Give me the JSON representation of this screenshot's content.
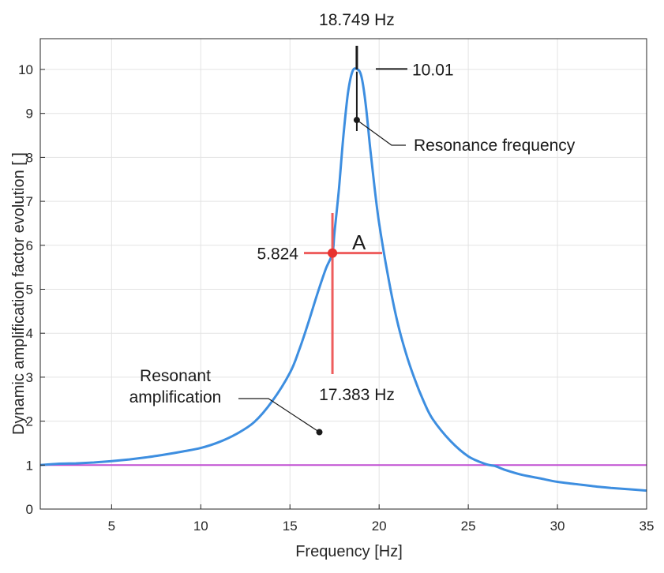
{
  "chart_data": {
    "type": "line",
    "title": "",
    "xlabel": "Frequency [Hz]",
    "ylabel": "Dynamic amplification factor evolution [ ]",
    "xlim": [
      1,
      35
    ],
    "ylim": [
      0,
      10.7
    ],
    "xticks": [
      5,
      10,
      15,
      20,
      25,
      30,
      35
    ],
    "yticks": [
      0,
      1,
      2,
      3,
      4,
      5,
      6,
      7,
      8,
      9,
      10
    ],
    "grid": true,
    "legend": "none",
    "series": [
      {
        "color": "#3d8ee0",
        "x": [
          1,
          2,
          3,
          4,
          5,
          6,
          7,
          8,
          9,
          10,
          11,
          12,
          13,
          14,
          15,
          15.5,
          16,
          16.5,
          17,
          17.383,
          17.5,
          17.75,
          18,
          18.25,
          18.5,
          18.749,
          19,
          19.25,
          19.5,
          19.75,
          20,
          20.5,
          21,
          21.5,
          22,
          22.5,
          23,
          24,
          25,
          26,
          26.5,
          27,
          28,
          29,
          30,
          31,
          32,
          33,
          34,
          35
        ],
        "values": [
          1.0,
          1.03,
          1.04,
          1.06,
          1.09,
          1.13,
          1.18,
          1.24,
          1.31,
          1.39,
          1.52,
          1.71,
          1.98,
          2.45,
          3.1,
          3.6,
          4.2,
          4.85,
          5.45,
          5.824,
          6.3,
          7.3,
          8.5,
          9.45,
          9.95,
          10.01,
          9.85,
          9.2,
          8.2,
          7.3,
          6.5,
          5.3,
          4.3,
          3.55,
          2.95,
          2.45,
          2.05,
          1.55,
          1.2,
          1.02,
          0.98,
          0.9,
          0.78,
          0.7,
          0.62,
          0.57,
          0.52,
          0.48,
          0.45,
          0.42
        ]
      },
      {
        "color": "#c04fd2",
        "x": [
          1,
          35
        ],
        "values": [
          1,
          1
        ]
      }
    ],
    "annotations": {
      "peak_freq_label": "18.749 Hz",
      "peak_value_label": "10.01",
      "resonance_label": "Resonance frequency",
      "point_value_label": "5.824",
      "point_letter": "A",
      "point_freq_label": "17.383 Hz",
      "resonant_label_line1": "Resonant",
      "resonant_label_line2": "amplification"
    },
    "colors": {
      "curve": "#3d8ee0",
      "baseline": "#c04fd2",
      "marker": "#e8322f",
      "crosshair": "#ee5d5d",
      "grid": "#e3e3e3",
      "axis": "#262626"
    }
  }
}
